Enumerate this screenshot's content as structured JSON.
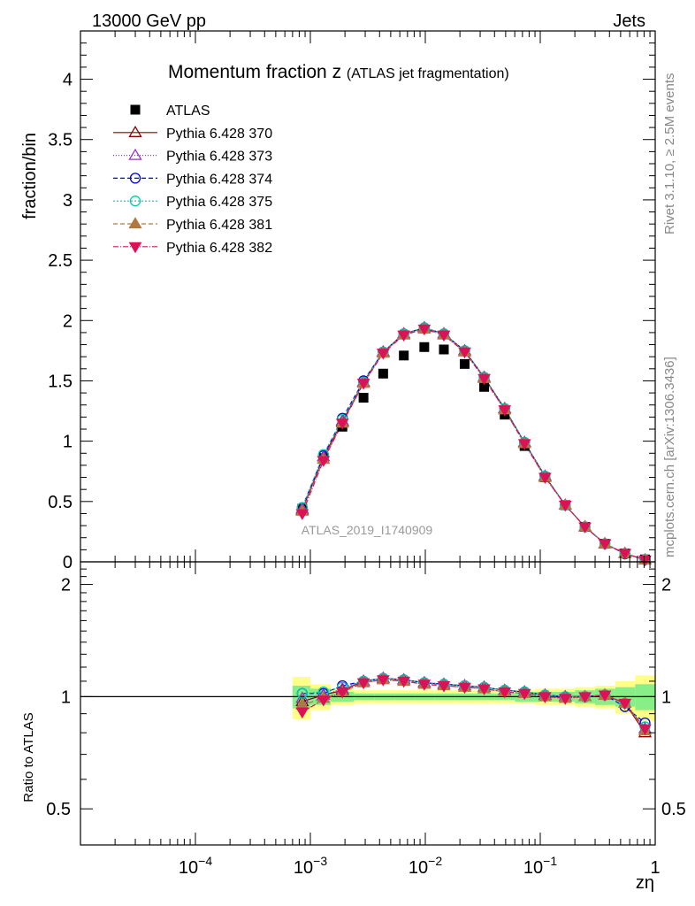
{
  "header": {
    "left": "13000 GeV pp",
    "right": "Jets"
  },
  "side_labels": {
    "rivet": "Rivet 3.1.10, ≥ 2.5M events",
    "mcplots": "mcplots.cern.ch [arXiv:1306.3436]"
  },
  "chart_data": [
    {
      "type": "scatter",
      "panel": "main",
      "title_main": "Momentum fraction z",
      "title_sub": "(ATLAS jet fragmentation)",
      "ylabel": "fraction/bin",
      "xscale": "log",
      "xlim": [
        1e-05,
        1
      ],
      "ylim": [
        0,
        4.4
      ],
      "yticks": [
        {
          "v": 0,
          "label": "0"
        },
        {
          "v": 0.5,
          "label": "0.5"
        },
        {
          "v": 1,
          "label": "1"
        },
        {
          "v": 1.5,
          "label": "1.5"
        },
        {
          "v": 2,
          "label": "2"
        },
        {
          "v": 2.5,
          "label": "2.5"
        },
        {
          "v": 3,
          "label": "3"
        },
        {
          "v": 3.5,
          "label": "3.5"
        },
        {
          "v": 4,
          "label": "4"
        }
      ],
      "watermark": "ATLAS_2019_I1740909",
      "legend_position": "top-left",
      "x": [
        0.00085,
        0.0013,
        0.0019,
        0.0029,
        0.0043,
        0.0065,
        0.0098,
        0.0145,
        0.022,
        0.0325,
        0.049,
        0.073,
        0.11,
        0.165,
        0.245,
        0.365,
        0.545,
        0.815
      ],
      "series": [
        {
          "name": "ATLAS",
          "color": "#000000",
          "marker": "square",
          "dash": "none",
          "values": [
            0.44,
            0.86,
            1.12,
            1.36,
            1.56,
            1.71,
            1.78,
            1.76,
            1.64,
            1.45,
            1.22,
            0.96,
            0.7,
            0.47,
            0.29,
            0.15,
            0.07,
            0.02
          ]
        },
        {
          "name": "Pythia 6.428 370",
          "color": "#8b0000",
          "marker": "triangle-open",
          "dash": "none",
          "values": [
            0.43,
            0.87,
            1.16,
            1.49,
            1.74,
            1.89,
            1.94,
            1.89,
            1.75,
            1.53,
            1.27,
            0.99,
            0.71,
            0.47,
            0.29,
            0.15,
            0.07,
            0.016
          ]
        },
        {
          "name": "Pythia 6.428 373",
          "color": "#9932cc",
          "marker": "triangle-open",
          "dash": "1,2",
          "values": [
            0.44,
            0.87,
            1.17,
            1.49,
            1.74,
            1.89,
            1.94,
            1.89,
            1.75,
            1.53,
            1.27,
            0.99,
            0.71,
            0.47,
            0.29,
            0.15,
            0.07,
            0.017
          ]
        },
        {
          "name": "Pythia 6.428 374",
          "color": "#0000dd",
          "marker": "circle-open",
          "dash": "5,3",
          "values": [
            0.45,
            0.88,
            1.19,
            1.5,
            1.74,
            1.89,
            1.94,
            1.89,
            1.75,
            1.53,
            1.27,
            0.99,
            0.71,
            0.47,
            0.29,
            0.15,
            0.066,
            0.018
          ]
        },
        {
          "name": "Pythia 6.428 375",
          "color": "#00ccaa",
          "marker": "circle-open",
          "dash": "2,2",
          "values": [
            0.45,
            0.89,
            1.18,
            1.49,
            1.74,
            1.89,
            1.94,
            1.89,
            1.75,
            1.53,
            1.27,
            0.99,
            0.71,
            0.47,
            0.29,
            0.15,
            0.07,
            0.017
          ]
        },
        {
          "name": "Pythia 6.428 381",
          "color": "#b07840",
          "marker": "triangle-filled",
          "dash": "5,3",
          "values": [
            0.42,
            0.85,
            1.15,
            1.48,
            1.73,
            1.88,
            1.93,
            1.88,
            1.74,
            1.52,
            1.26,
            0.98,
            0.7,
            0.47,
            0.29,
            0.15,
            0.07,
            0.016
          ]
        },
        {
          "name": "Pythia 6.428 382",
          "color": "#dd1155",
          "marker": "triangle-down-filled",
          "dash": "6,2,1,2",
          "values": [
            0.4,
            0.84,
            1.15,
            1.48,
            1.73,
            1.88,
            1.93,
            1.88,
            1.74,
            1.52,
            1.26,
            0.98,
            0.7,
            0.47,
            0.29,
            0.15,
            0.07,
            0.016
          ]
        }
      ]
    },
    {
      "type": "line",
      "panel": "ratio",
      "ylabel": "Ratio to ATLAS",
      "xlabel": "zη",
      "xscale": "log",
      "xlim": [
        1e-05,
        1
      ],
      "ylim": [
        0.4,
        2.3
      ],
      "yscale": "log",
      "yticks": [
        {
          "v": 0.5,
          "label": "0.5"
        },
        {
          "v": 1,
          "label": "1"
        },
        {
          "v": 2,
          "label": "2"
        }
      ],
      "xticks": [
        {
          "v": 0.0001,
          "base": "10",
          "exp": "−4"
        },
        {
          "v": 0.001,
          "base": "10",
          "exp": "−3"
        },
        {
          "v": 0.01,
          "base": "10",
          "exp": "−2"
        },
        {
          "v": 0.1,
          "base": "10",
          "exp": "−1"
        },
        {
          "v": 1,
          "base": "1",
          "exp": ""
        }
      ],
      "reference": 1,
      "bands": {
        "x_edges": [
          0.0007,
          0.001,
          0.0015,
          0.0024,
          0.0036,
          0.0054,
          0.0081,
          0.012,
          0.018,
          0.027,
          0.04,
          0.06,
          0.09,
          0.135,
          0.2,
          0.3,
          0.45,
          0.67,
          1.0
        ],
        "outer": [
          0.13,
          0.08,
          0.05,
          0.04,
          0.04,
          0.04,
          0.04,
          0.04,
          0.04,
          0.04,
          0.04,
          0.04,
          0.05,
          0.05,
          0.06,
          0.07,
          0.1,
          0.14
        ],
        "inner": [
          0.07,
          0.05,
          0.03,
          0.02,
          0.02,
          0.02,
          0.02,
          0.02,
          0.02,
          0.02,
          0.02,
          0.03,
          0.03,
          0.03,
          0.04,
          0.05,
          0.06,
          0.08
        ],
        "outer_color": "#ffff88",
        "inner_color": "#88ee88"
      },
      "series": [
        {
          "name": "Pythia 6.428 370",
          "values": [
            0.97,
            1.01,
            1.04,
            1.1,
            1.12,
            1.11,
            1.09,
            1.08,
            1.07,
            1.06,
            1.04,
            1.03,
            1.01,
            1.0,
            1.0,
            1.01,
            0.96,
            0.8
          ]
        },
        {
          "name": "Pythia 6.428 373",
          "values": [
            0.99,
            1.01,
            1.05,
            1.1,
            1.12,
            1.11,
            1.09,
            1.08,
            1.07,
            1.06,
            1.04,
            1.03,
            1.01,
            1.0,
            1.0,
            1.01,
            0.96,
            0.82
          ]
        },
        {
          "name": "Pythia 6.428 374",
          "values": [
            1.02,
            1.02,
            1.07,
            1.1,
            1.12,
            1.11,
            1.09,
            1.08,
            1.07,
            1.06,
            1.04,
            1.03,
            1.01,
            1.0,
            1.0,
            1.01,
            0.94,
            0.85
          ]
        },
        {
          "name": "Pythia 6.428 375",
          "values": [
            1.02,
            1.03,
            1.06,
            1.1,
            1.12,
            1.11,
            1.09,
            1.08,
            1.07,
            1.06,
            1.04,
            1.03,
            1.01,
            1.0,
            1.0,
            1.01,
            0.96,
            0.83
          ]
        },
        {
          "name": "Pythia 6.428 381",
          "values": [
            0.95,
            0.99,
            1.03,
            1.09,
            1.11,
            1.1,
            1.08,
            1.07,
            1.06,
            1.05,
            1.03,
            1.02,
            1.0,
            0.99,
            1.0,
            1.01,
            0.96,
            0.81
          ]
        },
        {
          "name": "Pythia 6.428 382",
          "values": [
            0.91,
            0.98,
            1.03,
            1.09,
            1.11,
            1.1,
            1.08,
            1.07,
            1.06,
            1.05,
            1.03,
            1.02,
            1.0,
            0.99,
            1.0,
            1.01,
            0.96,
            0.82
          ]
        }
      ]
    }
  ]
}
